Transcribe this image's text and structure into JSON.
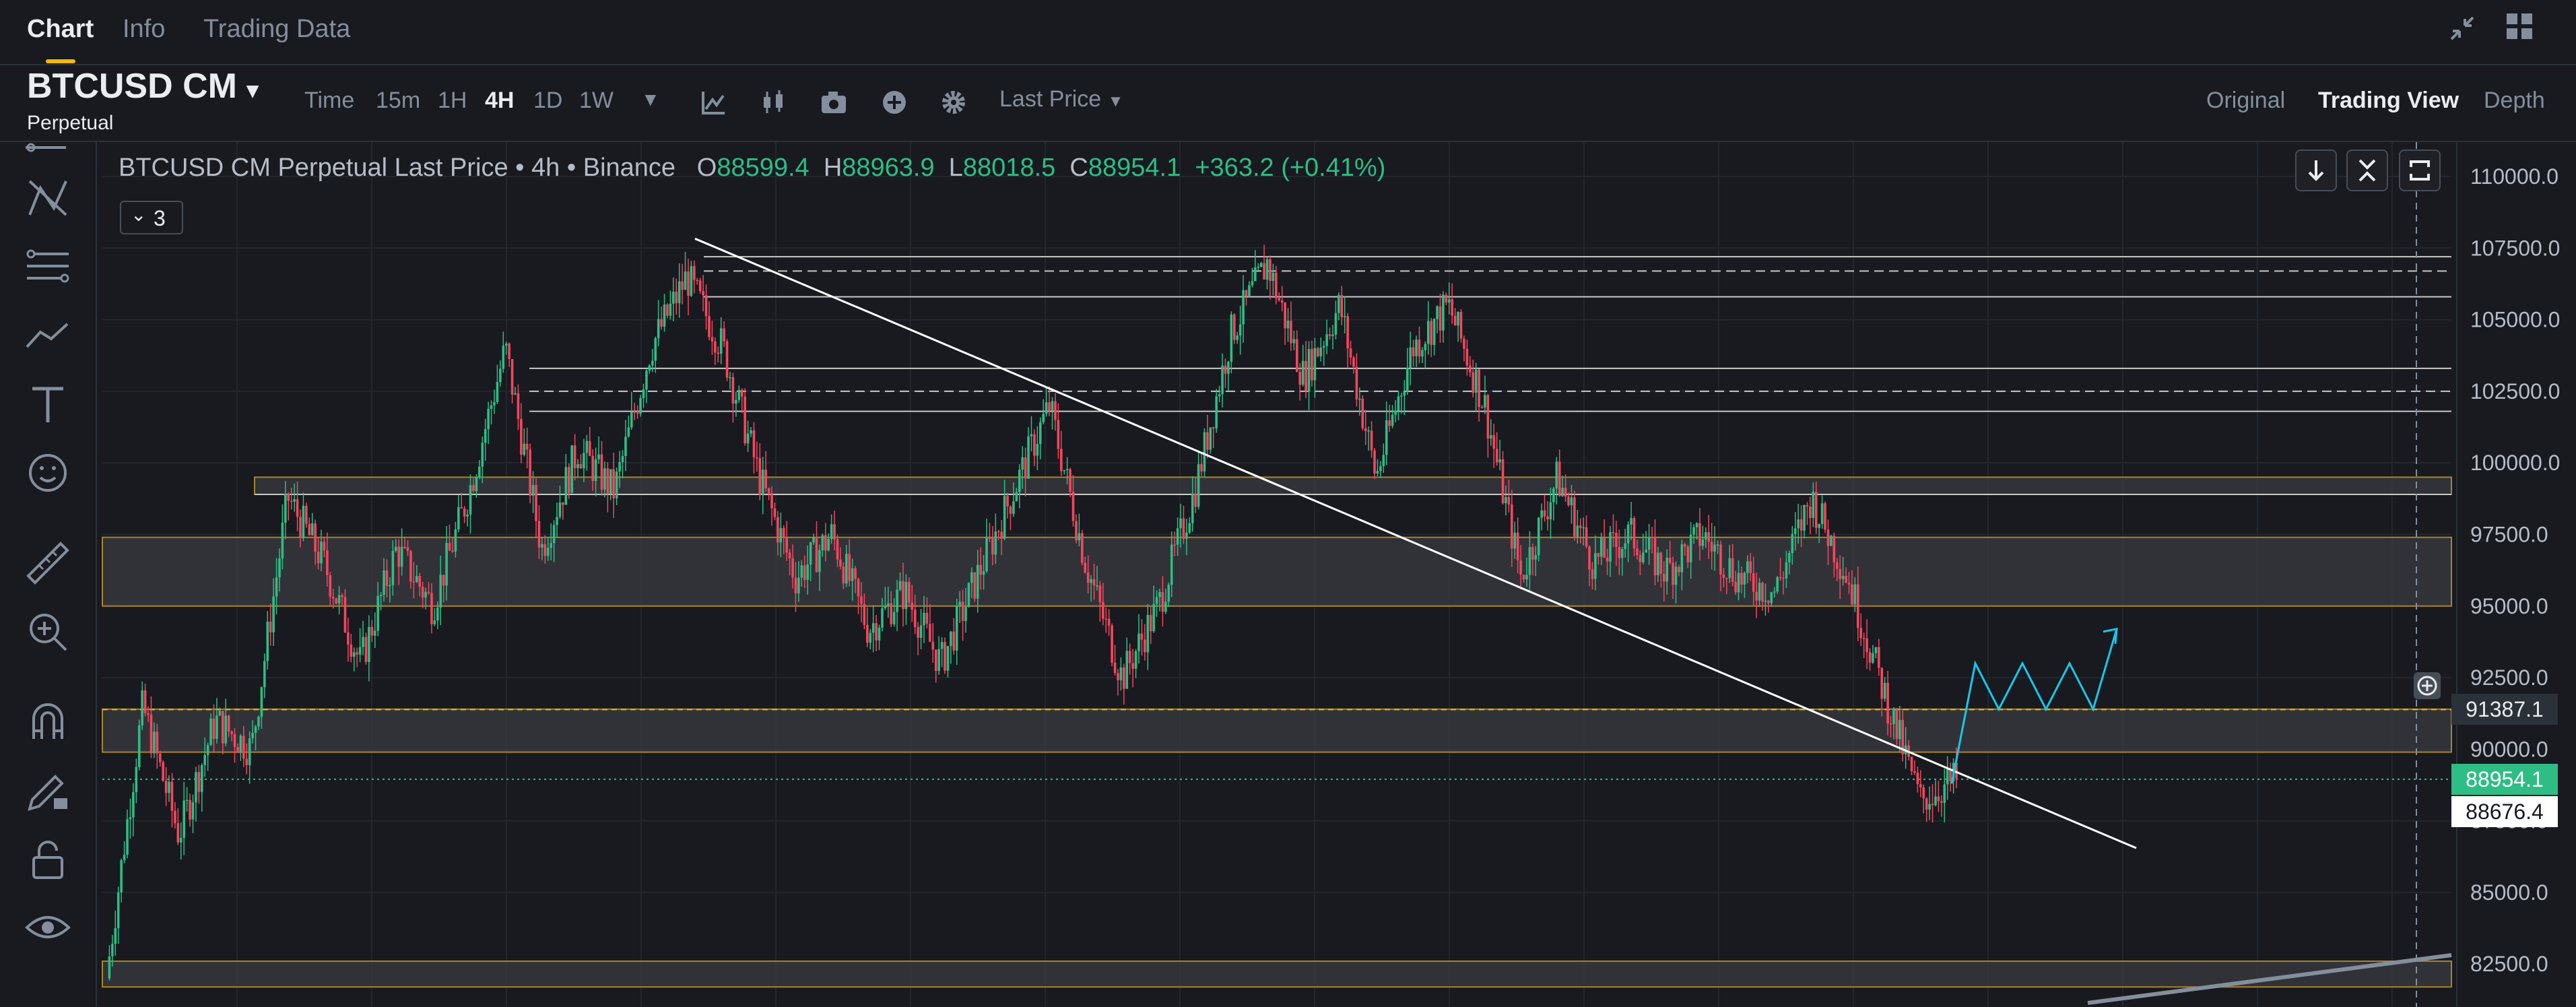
{
  "tabs": [
    "Chart",
    "Info",
    "Trading Data"
  ],
  "symbol": {
    "name": "BTCUSD CM",
    "subtitle": "Perpetual"
  },
  "toolbar": {
    "intervals": [
      "Time",
      "15m",
      "1H",
      "4H",
      "1D",
      "1W"
    ],
    "active_interval": "4H",
    "price_type": "Last Price",
    "views": [
      "Original",
      "Trading View",
      "Depth"
    ],
    "active_view": "Trading View"
  },
  "legend": {
    "title": "BTCUSD CM Perpetual Last Price • 4h • Binance",
    "open_label": "O",
    "open": "88599.4",
    "high_label": "H",
    "high": "88963.9",
    "low_label": "L",
    "low": "88018.5",
    "close_label": "C",
    "close": "88954.1",
    "change": "+363.2 (+0.41%)",
    "indicator_count": "3"
  },
  "left_tools": [
    "crosshair-icon",
    "pattern-icon",
    "fib-icon",
    "trend-icon",
    "text-icon",
    "emoji-icon",
    "ruler-icon",
    "zoom-icon",
    "magnet-icon",
    "pencil-lock-icon",
    "lock-icon",
    "eye-icon"
  ],
  "colors": {
    "up": "#2ebd85",
    "down": "#f6465d",
    "accent": "#f0b90b",
    "bg": "#181a20",
    "projection": "#16c8e8"
  },
  "chart_data": {
    "type": "candlestick",
    "title": "BTCUSD CM Perpetual Last Price • 4h • Binance",
    "ylim": [
      81000,
      111200
    ],
    "yticks": [
      82500,
      85000,
      87500,
      90000,
      92500,
      95000,
      97500,
      100000,
      102500,
      105000,
      107500,
      110000
    ],
    "ytick_labels": [
      "82500.0",
      "85000.0",
      "87500.0",
      "90000.0",
      "92500.0",
      "95000.0",
      "97500.0",
      "100000.0",
      "102500.0",
      "105000.0",
      "107500.0",
      "110000.0"
    ],
    "price_path": [
      [
        0,
        82000
      ],
      [
        1,
        91500
      ],
      [
        2,
        87000
      ],
      [
        3,
        91000
      ],
      [
        4,
        90000
      ],
      [
        5,
        98800
      ],
      [
        6,
        96500
      ],
      [
        7,
        93000
      ],
      [
        8,
        97000
      ],
      [
        9,
        95000
      ],
      [
        10,
        99000
      ],
      [
        11,
        104000
      ],
      [
        12,
        97000
      ],
      [
        13,
        100500
      ],
      [
        14,
        99000
      ],
      [
        15,
        104000
      ],
      [
        16,
        106500
      ],
      [
        17,
        104000
      ],
      [
        18,
        99500
      ],
      [
        19,
        96000
      ],
      [
        20,
        97500
      ],
      [
        21,
        94200
      ],
      [
        22,
        95500
      ],
      [
        23,
        93000
      ],
      [
        24,
        96000
      ],
      [
        25,
        99000
      ],
      [
        26,
        102000
      ],
      [
        27,
        96500
      ],
      [
        28,
        92500
      ],
      [
        29,
        95000
      ],
      [
        30,
        99000
      ],
      [
        31,
        104500
      ],
      [
        32,
        107000
      ],
      [
        33,
        103000
      ],
      [
        34,
        105500
      ],
      [
        35,
        99500
      ],
      [
        36,
        104000
      ],
      [
        37,
        105500
      ],
      [
        38,
        102000
      ],
      [
        39,
        96000
      ],
      [
        40,
        99500
      ],
      [
        41,
        96500
      ],
      [
        42,
        97500
      ],
      [
        43,
        96200
      ],
      [
        44,
        97500
      ],
      [
        45,
        96000
      ],
      [
        46,
        95500
      ],
      [
        47,
        98800
      ],
      [
        48,
        96000
      ],
      [
        49,
        92000
      ],
      [
        50,
        88200
      ],
      [
        51,
        88954
      ]
    ],
    "horizontal_levels": [
      107200,
      106700,
      105800,
      103300,
      102500,
      101800,
      98900
    ],
    "zones": [
      [
        95000,
        97400
      ],
      [
        89900,
        91400
      ],
      [
        81700,
        82600
      ],
      [
        98900,
        99500
      ]
    ],
    "current_price_line": 91387.1,
    "close_line": 88954.1,
    "price_tags": [
      {
        "label": "91387.1",
        "value": 91387.1,
        "style": "dark"
      },
      {
        "label": "88954.1",
        "value": 88954.1,
        "style": "green"
      },
      {
        "label": "88676.4",
        "value": 88676.4,
        "style": "white"
      }
    ],
    "trendline": [
      [
        107500,
        0.09
      ],
      [
        86550,
        0.88
      ]
    ],
    "projection": [
      [
        88800,
        0
      ],
      [
        93000,
        1
      ],
      [
        91400,
        2
      ],
      [
        93000,
        3
      ],
      [
        91400,
        4
      ],
      [
        93000,
        5
      ],
      [
        91400,
        6
      ],
      [
        94200,
        7
      ]
    ]
  }
}
